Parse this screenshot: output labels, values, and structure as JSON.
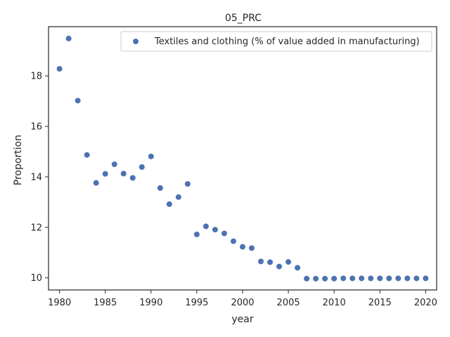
{
  "chart_data": {
    "type": "scatter",
    "title": "05_PRC",
    "xlabel": "year",
    "ylabel": "Proportion",
    "xlim": [
      1978.8,
      2021.2
    ],
    "ylim": [
      9.52,
      19.95
    ],
    "x_ticks": [
      1980,
      1985,
      1990,
      1995,
      2000,
      2005,
      2010,
      2015,
      2020
    ],
    "y_ticks": [
      10,
      12,
      14,
      16,
      18
    ],
    "grid": false,
    "legend_position": "upper right",
    "marker_color": "#4c72b0",
    "series": [
      {
        "name": "Textiles and clothing (% of value added in manufacturing)",
        "x": [
          1980,
          1981,
          1982,
          1983,
          1984,
          1985,
          1986,
          1987,
          1988,
          1989,
          1990,
          1991,
          1992,
          1993,
          1994,
          1995,
          1996,
          1997,
          1998,
          1999,
          2000,
          2001,
          2002,
          2003,
          2004,
          2005,
          2006,
          2007,
          2008,
          2009,
          2010,
          2011,
          2012,
          2013,
          2014,
          2015,
          2016,
          2017,
          2018,
          2019,
          2020
        ],
        "y": [
          18.28,
          19.48,
          17.02,
          14.87,
          13.76,
          14.12,
          14.5,
          14.13,
          13.96,
          14.39,
          14.81,
          13.56,
          12.92,
          13.2,
          13.72,
          11.72,
          12.04,
          11.91,
          11.76,
          11.45,
          11.23,
          11.18,
          10.65,
          10.62,
          10.45,
          10.63,
          10.4,
          9.97,
          9.97,
          9.97,
          9.97,
          9.98,
          9.98,
          9.98,
          9.98,
          9.98,
          9.98,
          9.98,
          9.98,
          9.98,
          9.98
        ]
      }
    ]
  }
}
